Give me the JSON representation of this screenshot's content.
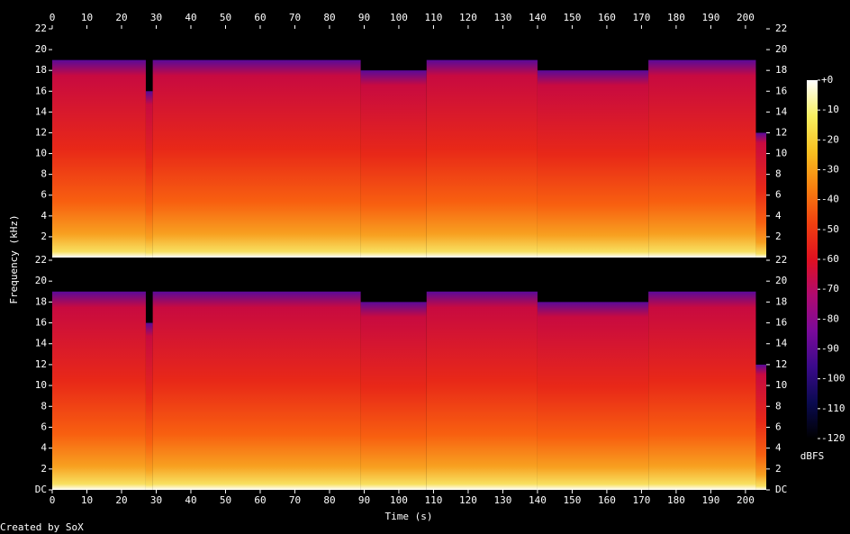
{
  "chart_data": {
    "type": "spectrogram",
    "xlabel": "Time (s)",
    "ylabel": "Frequency (kHz)",
    "credit": "Created by SoX",
    "xlim": [
      0,
      206
    ],
    "xticks": [
      0,
      10,
      20,
      30,
      40,
      50,
      60,
      70,
      80,
      90,
      100,
      110,
      120,
      130,
      140,
      150,
      160,
      170,
      180,
      190,
      200
    ],
    "ylim": [
      0,
      22
    ],
    "yticks_upper": [
      2,
      4,
      6,
      8,
      10,
      12,
      14,
      16,
      18,
      20,
      22
    ],
    "yticks_lower": [
      {
        "value": 0,
        "label": "DC"
      },
      2,
      4,
      6,
      8,
      10,
      12,
      14,
      16,
      18,
      20,
      22
    ],
    "time_edges": [
      0,
      27,
      29,
      89,
      108,
      140,
      172,
      203,
      206
    ],
    "cutoff_khz": [
      19,
      16,
      19,
      18,
      19,
      18,
      19,
      12
    ],
    "colorbar": {
      "lim": [
        -120,
        0
      ],
      "ticks": [
        {
          "value": 0,
          "label": "+0"
        },
        -10,
        -20,
        -30,
        -40,
        -50,
        -60,
        -70,
        -80,
        -90,
        -100,
        -110,
        -120
      ],
      "label": "dBFS",
      "colors": [
        "#000000",
        "#0a0a50",
        "#3a0a8a",
        "#7a0a9a",
        "#b00a70",
        "#e01020",
        "#f04010",
        "#f88010",
        "#f8c020",
        "#f8f060",
        "#ffffff"
      ]
    }
  }
}
